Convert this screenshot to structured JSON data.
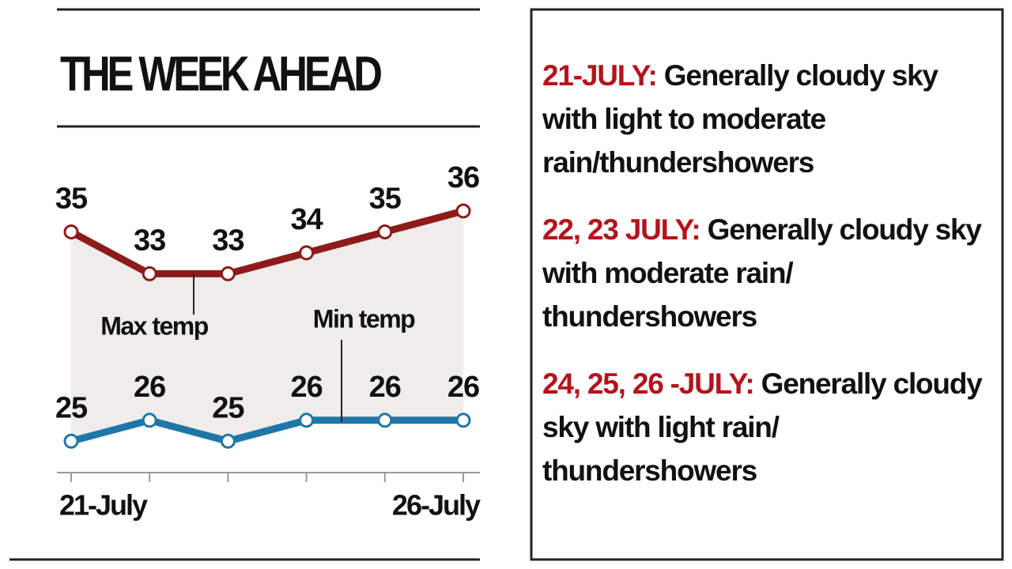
{
  "chart_data": {
    "type": "line",
    "title": "THE WEEK AHEAD",
    "categories": [
      "21-July",
      null,
      null,
      null,
      null,
      "26-July"
    ],
    "series": [
      {
        "name": "Max temp",
        "color": "#8e1b1b",
        "values": [
          35,
          33,
          33,
          34,
          35,
          36
        ]
      },
      {
        "name": "Min temp",
        "color": "#1f77a8",
        "values": [
          25,
          26,
          25,
          26,
          26,
          26
        ]
      }
    ],
    "ylim": [
      23.5,
      38
    ]
  },
  "forecasts": [
    {
      "date": "21-JULY:",
      "text": "Generally cloudy sky with light to moderate rain/thundershowers"
    },
    {
      "date": "22, 23 JULY:",
      "text": "Generally cloudy sky with moderate rain/ thundershowers"
    },
    {
      "date": "24, 25, 26 -JULY:",
      "text": "Generally cloudy sky with light rain/ thundershowers"
    }
  ]
}
